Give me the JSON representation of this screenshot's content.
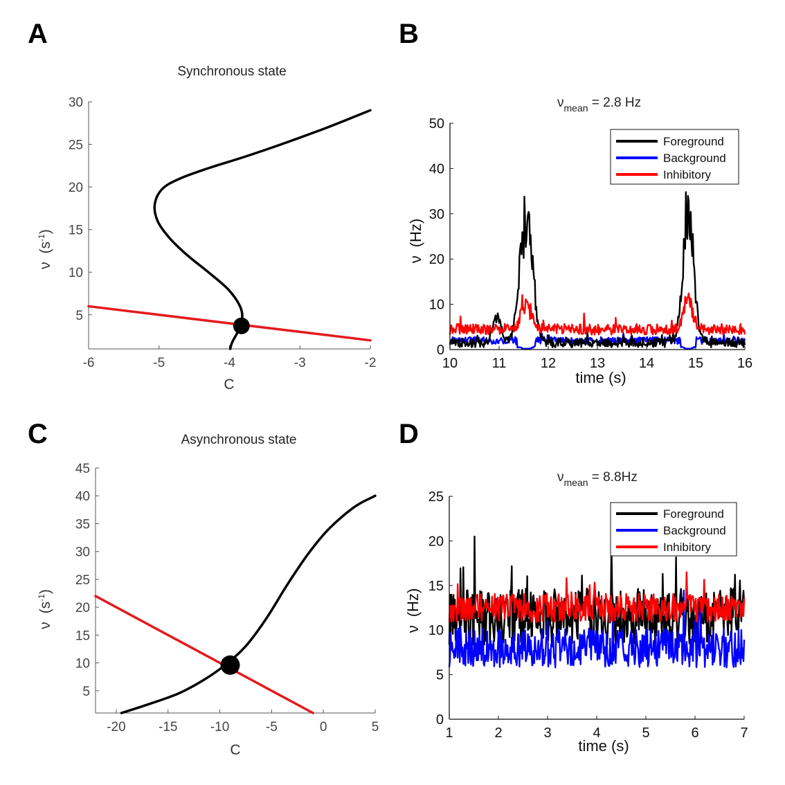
{
  "panels": {
    "A": {
      "label": "A",
      "title": "Synchronous state"
    },
    "B": {
      "label": "B",
      "title_prefix": "ν",
      "title_sub": "mean",
      "title_rest": " = 2.8 Hz"
    },
    "C": {
      "label": "C",
      "title": "Asynchronous state"
    },
    "D": {
      "label": "D",
      "title_prefix": "ν",
      "title_sub": "mean",
      "title_rest": " = 8.8Hz"
    }
  },
  "colors": {
    "excitatory": "#000000",
    "inhibitory_line": "#e41a1c",
    "background": "#0000ff",
    "inhibitory": "#ff0000"
  },
  "chart_data": [
    {
      "id": "A",
      "type": "line",
      "title": "Synchronous state",
      "xlabel": "C",
      "ylabel_main": "ν",
      "ylabel_unit_base": "(s",
      "ylabel_unit_exp": "-1",
      "ylabel_unit_close": ")",
      "xlim": [
        -6,
        -2
      ],
      "ylim": [
        1,
        30
      ],
      "xticks": [
        -6,
        -5,
        -4,
        -3,
        -2
      ],
      "yticks": [
        5,
        10,
        15,
        20,
        25,
        30
      ],
      "series": [
        {
          "name": "nullcline",
          "color": "black",
          "x": [
            -3.99,
            -3.96,
            -3.87,
            -3.82,
            -3.85,
            -4.02,
            -4.3,
            -4.6,
            -4.85,
            -5.02,
            -5.06,
            -4.95,
            -4.7,
            -4.3,
            -3.8,
            -3.3,
            -2.7,
            -2.3,
            -2.0
          ],
          "y": [
            1,
            1.8,
            3.2,
            4.5,
            6,
            8,
            10,
            12,
            14,
            16,
            18,
            19.8,
            21,
            22.2,
            23.5,
            24.9,
            26.7,
            28,
            29
          ]
        },
        {
          "name": "linear",
          "color": "red",
          "x": [
            -6,
            -2
          ],
          "y": [
            6,
            2
          ]
        }
      ],
      "fixed_point": {
        "x": -3.83,
        "y": 3.7
      }
    },
    {
      "id": "B",
      "type": "line",
      "xlabel": "time (s)",
      "ylabel_main": "ν",
      "ylabel_unit": "(Hz)",
      "xlim": [
        10,
        16
      ],
      "ylim": [
        0,
        50
      ],
      "xticks": [
        10,
        11,
        12,
        13,
        14,
        15,
        16
      ],
      "yticks": [
        0,
        10,
        20,
        30,
        40,
        50
      ],
      "legend": [
        "Foreground",
        "Background",
        "Inhibitory"
      ],
      "series": [
        {
          "name": "Foreground",
          "color": "black",
          "baseline": 1.5,
          "noise": 1.0,
          "bumps": [
            {
              "center": 11.55,
              "width": 0.13,
              "height": 27
            },
            {
              "center": 14.85,
              "width": 0.11,
              "height": 31
            },
            {
              "center": 10.95,
              "width": 0.08,
              "height": 6
            }
          ]
        },
        {
          "name": "Background",
          "color": "blue",
          "baseline": 2.0,
          "noise": 0.8,
          "dips": [
            {
              "center": 11.55,
              "width": 0.18
            },
            {
              "center": 14.85,
              "width": 0.16
            }
          ]
        },
        {
          "name": "Inhibitory",
          "color": "red",
          "baseline": 4.5,
          "noise": 1.2,
          "bumps": [
            {
              "center": 11.55,
              "width": 0.1,
              "height": 5.5
            },
            {
              "center": 14.85,
              "width": 0.09,
              "height": 7
            }
          ]
        }
      ]
    },
    {
      "id": "C",
      "type": "line",
      "title": "Asynchronous state",
      "xlabel": "C",
      "ylabel_main": "ν",
      "ylabel_unit_base": "(s",
      "ylabel_unit_exp": "-1",
      "ylabel_unit_close": ")",
      "xlim": [
        -22,
        5
      ],
      "ylim": [
        1,
        45
      ],
      "xticks": [
        -20,
        -15,
        -10,
        -5,
        0,
        5
      ],
      "yticks": [
        5,
        10,
        15,
        20,
        25,
        30,
        35,
        40,
        45
      ],
      "series": [
        {
          "name": "nullcline",
          "color": "black",
          "x": [
            -19.5,
            -17,
            -14,
            -11.5,
            -9.5,
            -7.5,
            -5.5,
            -3.5,
            -1.5,
            0.5,
            3,
            5
          ],
          "y": [
            1,
            2.5,
            4.5,
            7,
            9.6,
            13,
            18,
            24,
            29.5,
            34,
            38,
            40
          ]
        },
        {
          "name": "linear",
          "color": "red",
          "x": [
            -22,
            -1
          ],
          "y": [
            22,
            1
          ]
        }
      ],
      "fixed_point": {
        "x": -9.0,
        "y": 9.6
      }
    },
    {
      "id": "D",
      "type": "line",
      "xlabel": "time (s)",
      "ylabel_main": "ν",
      "ylabel_unit": "(Hz)",
      "xlim": [
        1,
        7
      ],
      "ylim": [
        0,
        25
      ],
      "xticks": [
        1,
        2,
        3,
        4,
        5,
        6,
        7
      ],
      "yticks": [
        0,
        5,
        10,
        15,
        20,
        25
      ],
      "legend": [
        "Foreground",
        "Background",
        "Inhibitory"
      ],
      "series": [
        {
          "name": "Foreground",
          "color": "black",
          "baseline": 11.5,
          "noise": 3.2,
          "peak": 20.5
        },
        {
          "name": "Background",
          "color": "blue",
          "baseline": 8.0,
          "noise": 2.2
        },
        {
          "name": "Inhibitory",
          "color": "red",
          "baseline": 12.5,
          "noise": 1.6
        }
      ]
    }
  ]
}
